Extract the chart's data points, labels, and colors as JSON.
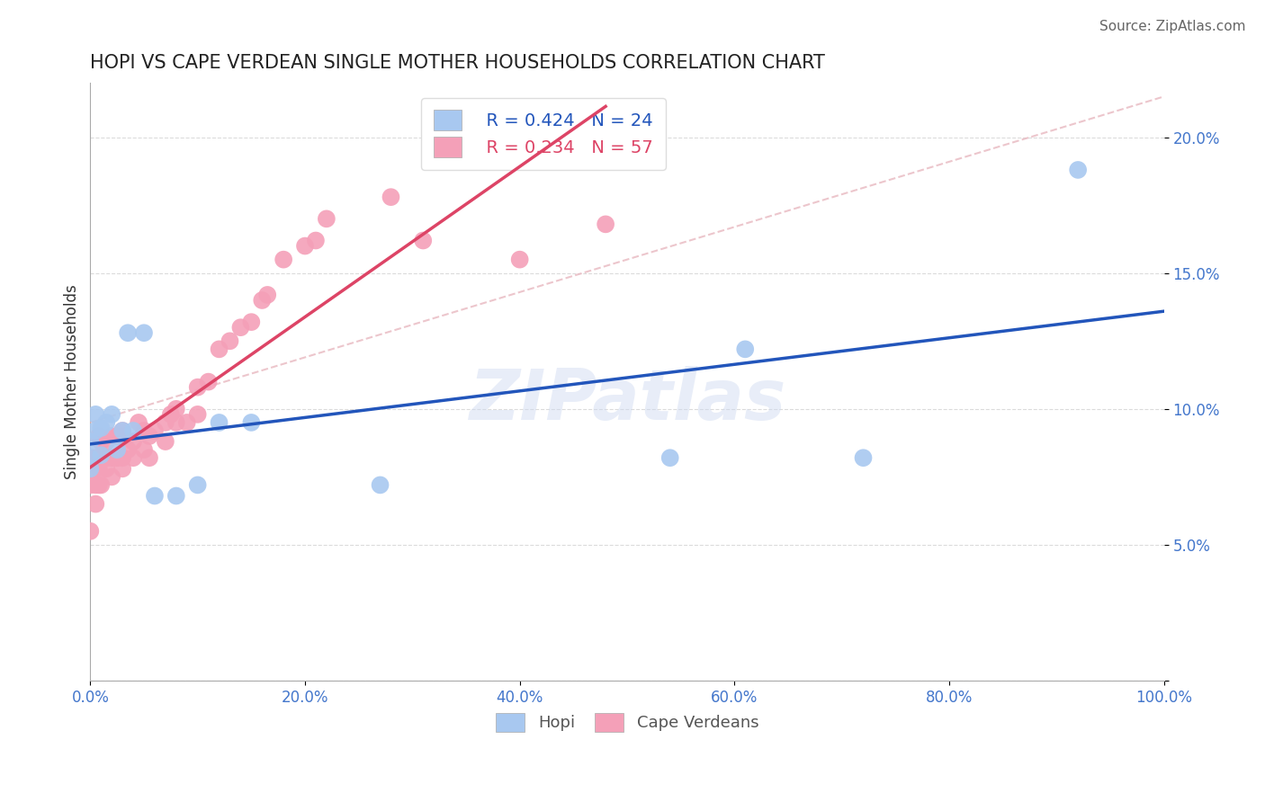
{
  "title": "HOPI VS CAPE VERDEAN SINGLE MOTHER HOUSEHOLDS CORRELATION CHART",
  "source": "Source: ZipAtlas.com",
  "ylabel": "Single Mother Households",
  "xlim": [
    0,
    1.0
  ],
  "ylim": [
    0,
    0.22
  ],
  "xticks": [
    0.0,
    0.2,
    0.4,
    0.6,
    0.8,
    1.0
  ],
  "xticklabels": [
    "0.0%",
    "20.0%",
    "40.0%",
    "60.0%",
    "80.0%",
    "100.0%"
  ],
  "yticks": [
    0.0,
    0.05,
    0.1,
    0.15,
    0.2
  ],
  "yticklabels": [
    "",
    "5.0%",
    "10.0%",
    "15.0%",
    "20.0%"
  ],
  "hopi_color": "#a8c8f0",
  "cape_color": "#f4a0b8",
  "hopi_line_color": "#2255bb",
  "cape_line_color": "#dd4466",
  "diag_color": "#e8b8c0",
  "legend_R_hopi": "R = 0.424",
  "legend_N_hopi": "N = 24",
  "legend_R_cape": "R = 0.234",
  "legend_N_cape": "N = 57",
  "watermark": "ZIPatlas",
  "hopi_points_x": [
    0.0,
    0.0,
    0.0,
    0.005,
    0.005,
    0.01,
    0.01,
    0.015,
    0.02,
    0.025,
    0.03,
    0.035,
    0.04,
    0.05,
    0.06,
    0.08,
    0.1,
    0.12,
    0.15,
    0.27,
    0.54,
    0.61,
    0.72,
    0.92
  ],
  "hopi_points_y": [
    0.078,
    0.082,
    0.088,
    0.092,
    0.098,
    0.083,
    0.093,
    0.095,
    0.098,
    0.085,
    0.092,
    0.128,
    0.092,
    0.128,
    0.068,
    0.068,
    0.072,
    0.095,
    0.095,
    0.072,
    0.082,
    0.122,
    0.082,
    0.188
  ],
  "cape_points_x": [
    0.0,
    0.0,
    0.0,
    0.005,
    0.005,
    0.005,
    0.005,
    0.008,
    0.008,
    0.008,
    0.01,
    0.01,
    0.01,
    0.015,
    0.015,
    0.015,
    0.02,
    0.02,
    0.02,
    0.025,
    0.025,
    0.03,
    0.03,
    0.03,
    0.03,
    0.035,
    0.04,
    0.04,
    0.045,
    0.05,
    0.05,
    0.055,
    0.055,
    0.06,
    0.07,
    0.07,
    0.075,
    0.08,
    0.08,
    0.09,
    0.1,
    0.1,
    0.11,
    0.12,
    0.13,
    0.14,
    0.15,
    0.16,
    0.165,
    0.18,
    0.2,
    0.21,
    0.22,
    0.28,
    0.31,
    0.4,
    0.48
  ],
  "cape_points_y": [
    0.055,
    0.072,
    0.082,
    0.065,
    0.072,
    0.078,
    0.082,
    0.072,
    0.078,
    0.09,
    0.072,
    0.082,
    0.088,
    0.078,
    0.082,
    0.088,
    0.075,
    0.082,
    0.09,
    0.082,
    0.09,
    0.078,
    0.082,
    0.09,
    0.092,
    0.085,
    0.082,
    0.088,
    0.095,
    0.085,
    0.092,
    0.082,
    0.09,
    0.092,
    0.088,
    0.095,
    0.098,
    0.095,
    0.1,
    0.095,
    0.098,
    0.108,
    0.11,
    0.122,
    0.125,
    0.13,
    0.132,
    0.14,
    0.142,
    0.155,
    0.16,
    0.162,
    0.17,
    0.178,
    0.162,
    0.155,
    0.168
  ],
  "bg_color": "#ffffff",
  "grid_color": "#cccccc"
}
